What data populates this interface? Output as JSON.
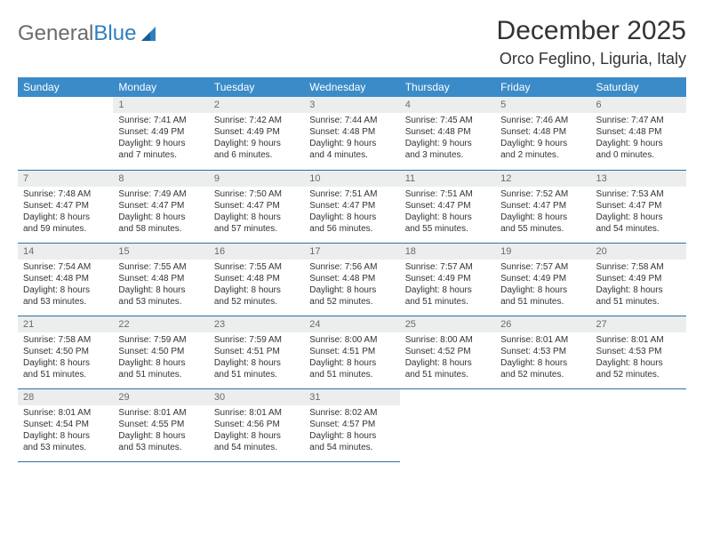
{
  "logo": {
    "text1": "General",
    "text2": "Blue"
  },
  "title": "December 2025",
  "location": "Orco Feglino, Liguria, Italy",
  "colors": {
    "header_bg": "#3b8bc8",
    "header_text": "#ffffff",
    "daynum_bg": "#eceeee",
    "daynum_text": "#6a6a6a",
    "body_text": "#333333",
    "rule": "#2f6fa3",
    "logo_gray": "#6b6b6b",
    "logo_blue": "#2f7fc0"
  },
  "day_headers": [
    "Sunday",
    "Monday",
    "Tuesday",
    "Wednesday",
    "Thursday",
    "Friday",
    "Saturday"
  ],
  "weeks": [
    [
      null,
      {
        "n": "1",
        "sr": "Sunrise: 7:41 AM",
        "ss": "Sunset: 4:49 PM",
        "d1": "Daylight: 9 hours",
        "d2": "and 7 minutes."
      },
      {
        "n": "2",
        "sr": "Sunrise: 7:42 AM",
        "ss": "Sunset: 4:49 PM",
        "d1": "Daylight: 9 hours",
        "d2": "and 6 minutes."
      },
      {
        "n": "3",
        "sr": "Sunrise: 7:44 AM",
        "ss": "Sunset: 4:48 PM",
        "d1": "Daylight: 9 hours",
        "d2": "and 4 minutes."
      },
      {
        "n": "4",
        "sr": "Sunrise: 7:45 AM",
        "ss": "Sunset: 4:48 PM",
        "d1": "Daylight: 9 hours",
        "d2": "and 3 minutes."
      },
      {
        "n": "5",
        "sr": "Sunrise: 7:46 AM",
        "ss": "Sunset: 4:48 PM",
        "d1": "Daylight: 9 hours",
        "d2": "and 2 minutes."
      },
      {
        "n": "6",
        "sr": "Sunrise: 7:47 AM",
        "ss": "Sunset: 4:48 PM",
        "d1": "Daylight: 9 hours",
        "d2": "and 0 minutes."
      }
    ],
    [
      {
        "n": "7",
        "sr": "Sunrise: 7:48 AM",
        "ss": "Sunset: 4:47 PM",
        "d1": "Daylight: 8 hours",
        "d2": "and 59 minutes."
      },
      {
        "n": "8",
        "sr": "Sunrise: 7:49 AM",
        "ss": "Sunset: 4:47 PM",
        "d1": "Daylight: 8 hours",
        "d2": "and 58 minutes."
      },
      {
        "n": "9",
        "sr": "Sunrise: 7:50 AM",
        "ss": "Sunset: 4:47 PM",
        "d1": "Daylight: 8 hours",
        "d2": "and 57 minutes."
      },
      {
        "n": "10",
        "sr": "Sunrise: 7:51 AM",
        "ss": "Sunset: 4:47 PM",
        "d1": "Daylight: 8 hours",
        "d2": "and 56 minutes."
      },
      {
        "n": "11",
        "sr": "Sunrise: 7:51 AM",
        "ss": "Sunset: 4:47 PM",
        "d1": "Daylight: 8 hours",
        "d2": "and 55 minutes."
      },
      {
        "n": "12",
        "sr": "Sunrise: 7:52 AM",
        "ss": "Sunset: 4:47 PM",
        "d1": "Daylight: 8 hours",
        "d2": "and 55 minutes."
      },
      {
        "n": "13",
        "sr": "Sunrise: 7:53 AM",
        "ss": "Sunset: 4:47 PM",
        "d1": "Daylight: 8 hours",
        "d2": "and 54 minutes."
      }
    ],
    [
      {
        "n": "14",
        "sr": "Sunrise: 7:54 AM",
        "ss": "Sunset: 4:48 PM",
        "d1": "Daylight: 8 hours",
        "d2": "and 53 minutes."
      },
      {
        "n": "15",
        "sr": "Sunrise: 7:55 AM",
        "ss": "Sunset: 4:48 PM",
        "d1": "Daylight: 8 hours",
        "d2": "and 53 minutes."
      },
      {
        "n": "16",
        "sr": "Sunrise: 7:55 AM",
        "ss": "Sunset: 4:48 PM",
        "d1": "Daylight: 8 hours",
        "d2": "and 52 minutes."
      },
      {
        "n": "17",
        "sr": "Sunrise: 7:56 AM",
        "ss": "Sunset: 4:48 PM",
        "d1": "Daylight: 8 hours",
        "d2": "and 52 minutes."
      },
      {
        "n": "18",
        "sr": "Sunrise: 7:57 AM",
        "ss": "Sunset: 4:49 PM",
        "d1": "Daylight: 8 hours",
        "d2": "and 51 minutes."
      },
      {
        "n": "19",
        "sr": "Sunrise: 7:57 AM",
        "ss": "Sunset: 4:49 PM",
        "d1": "Daylight: 8 hours",
        "d2": "and 51 minutes."
      },
      {
        "n": "20",
        "sr": "Sunrise: 7:58 AM",
        "ss": "Sunset: 4:49 PM",
        "d1": "Daylight: 8 hours",
        "d2": "and 51 minutes."
      }
    ],
    [
      {
        "n": "21",
        "sr": "Sunrise: 7:58 AM",
        "ss": "Sunset: 4:50 PM",
        "d1": "Daylight: 8 hours",
        "d2": "and 51 minutes."
      },
      {
        "n": "22",
        "sr": "Sunrise: 7:59 AM",
        "ss": "Sunset: 4:50 PM",
        "d1": "Daylight: 8 hours",
        "d2": "and 51 minutes."
      },
      {
        "n": "23",
        "sr": "Sunrise: 7:59 AM",
        "ss": "Sunset: 4:51 PM",
        "d1": "Daylight: 8 hours",
        "d2": "and 51 minutes."
      },
      {
        "n": "24",
        "sr": "Sunrise: 8:00 AM",
        "ss": "Sunset: 4:51 PM",
        "d1": "Daylight: 8 hours",
        "d2": "and 51 minutes."
      },
      {
        "n": "25",
        "sr": "Sunrise: 8:00 AM",
        "ss": "Sunset: 4:52 PM",
        "d1": "Daylight: 8 hours",
        "d2": "and 51 minutes."
      },
      {
        "n": "26",
        "sr": "Sunrise: 8:01 AM",
        "ss": "Sunset: 4:53 PM",
        "d1": "Daylight: 8 hours",
        "d2": "and 52 minutes."
      },
      {
        "n": "27",
        "sr": "Sunrise: 8:01 AM",
        "ss": "Sunset: 4:53 PM",
        "d1": "Daylight: 8 hours",
        "d2": "and 52 minutes."
      }
    ],
    [
      {
        "n": "28",
        "sr": "Sunrise: 8:01 AM",
        "ss": "Sunset: 4:54 PM",
        "d1": "Daylight: 8 hours",
        "d2": "and 53 minutes."
      },
      {
        "n": "29",
        "sr": "Sunrise: 8:01 AM",
        "ss": "Sunset: 4:55 PM",
        "d1": "Daylight: 8 hours",
        "d2": "and 53 minutes."
      },
      {
        "n": "30",
        "sr": "Sunrise: 8:01 AM",
        "ss": "Sunset: 4:56 PM",
        "d1": "Daylight: 8 hours",
        "d2": "and 54 minutes."
      },
      {
        "n": "31",
        "sr": "Sunrise: 8:02 AM",
        "ss": "Sunset: 4:57 PM",
        "d1": "Daylight: 8 hours",
        "d2": "and 54 minutes."
      },
      null,
      null,
      null
    ]
  ]
}
